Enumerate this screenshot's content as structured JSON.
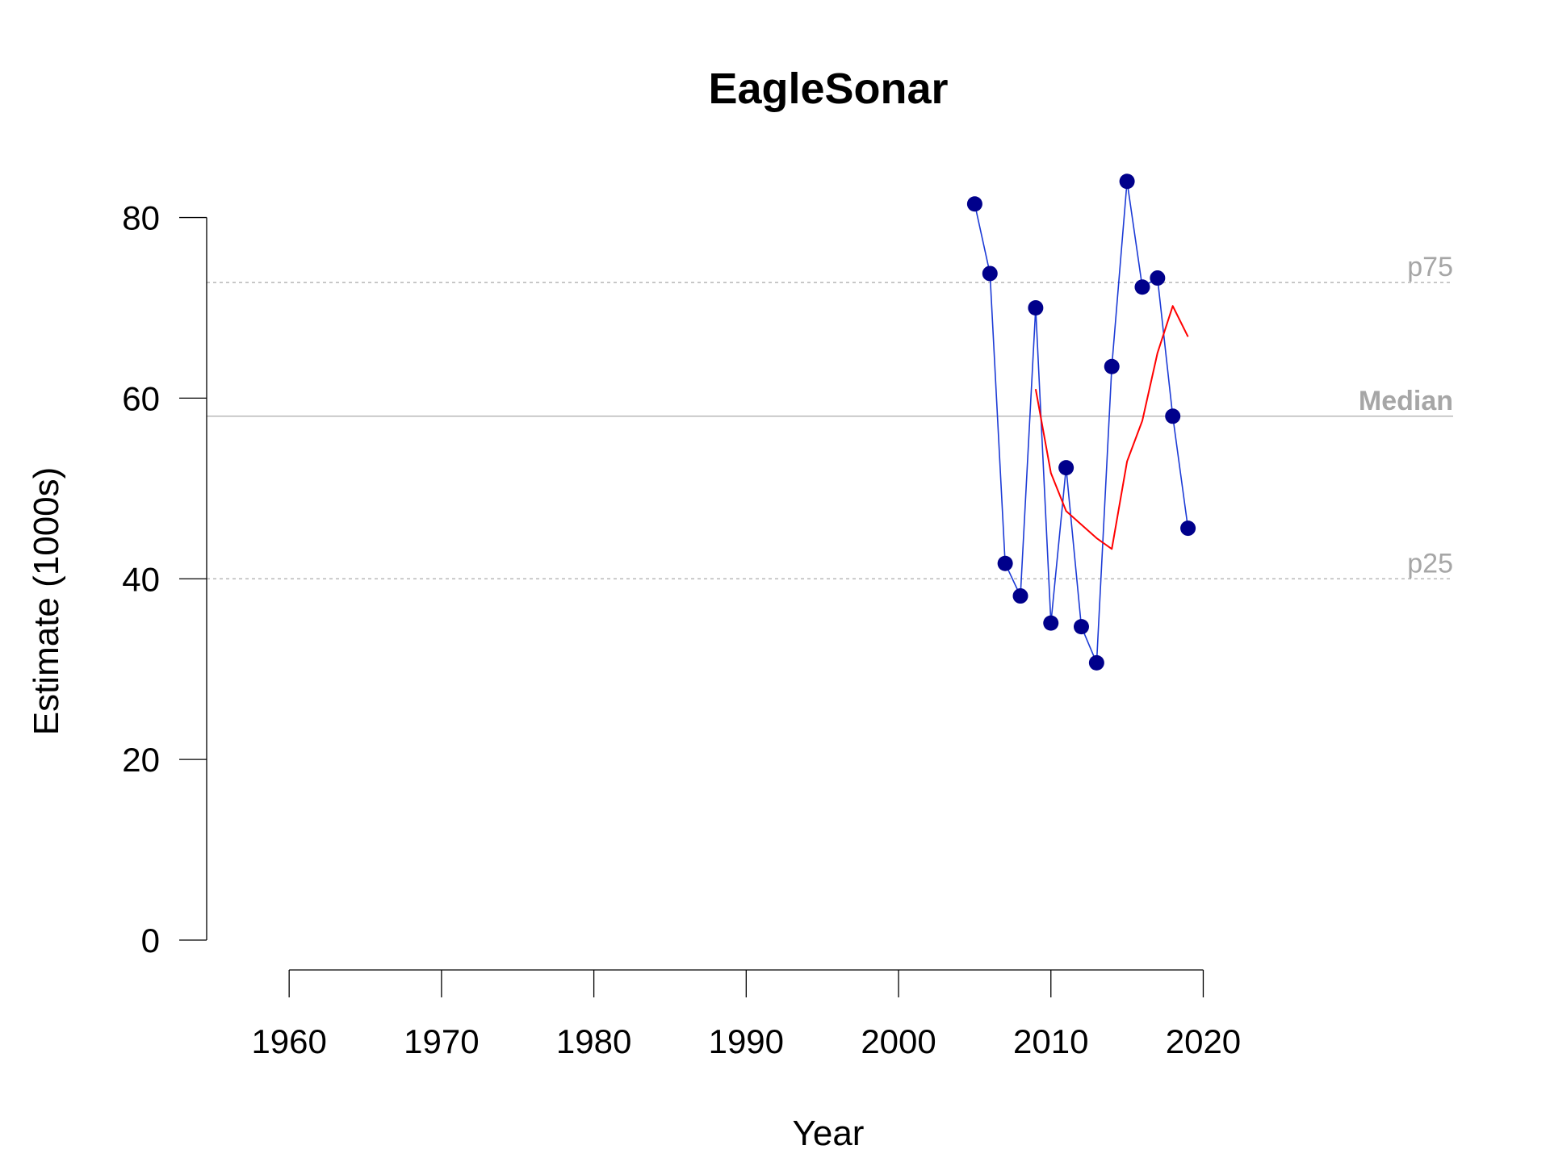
{
  "chart_data": {
    "type": "line",
    "title": "EagleSonar",
    "xlabel": "Year",
    "ylabel": "Estimate (1000s)",
    "xlim": [
      1957.5,
      2027.5
    ],
    "ylim": [
      0,
      88
    ],
    "xticks": [
      1960,
      1970,
      1980,
      1990,
      2000,
      2010,
      2020
    ],
    "yticks": [
      0,
      20,
      40,
      60,
      80
    ],
    "reference_lines": [
      {
        "label": "p75",
        "value": 72.8,
        "style": "dashed",
        "bold": false
      },
      {
        "label": "Median",
        "value": 58.0,
        "style": "solid",
        "bold": true
      },
      {
        "label": "p25",
        "value": 40.0,
        "style": "dashed",
        "bold": false
      }
    ],
    "series": [
      {
        "style": "points-and-line",
        "point_color": "#00008b",
        "line_color": "#1c3bd6",
        "x": [
          2005,
          2006,
          2007,
          2008,
          2009,
          2010,
          2011,
          2012,
          2013,
          2014,
          2015,
          2016,
          2017,
          2018,
          2019
        ],
        "y": [
          81.5,
          73.8,
          41.7,
          38.1,
          70.0,
          35.1,
          52.3,
          34.7,
          30.7,
          63.5,
          84.0,
          72.3,
          73.3,
          58.0,
          45.6
        ]
      },
      {
        "style": "line",
        "line_color": "#ff0000",
        "x": [
          2009,
          2010,
          2011,
          2012,
          2013,
          2014,
          2015,
          2016,
          2017,
          2018,
          2019
        ],
        "y": [
          61.0,
          51.7,
          47.5,
          46.0,
          44.5,
          43.3,
          53.0,
          57.5,
          65.0,
          70.2,
          66.8
        ]
      }
    ],
    "grid": false,
    "legend": "none"
  }
}
